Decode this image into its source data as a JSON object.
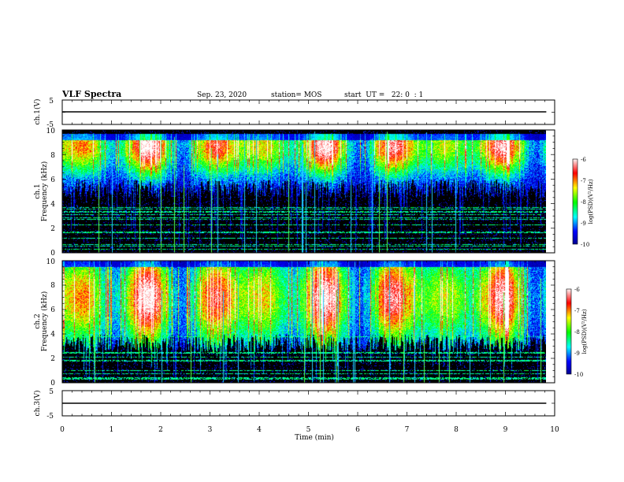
{
  "header": {
    "title": "VLF Spectra",
    "date": "Sep. 23, 2020",
    "station": "station= MOS",
    "start_ut": "start  UT =   22: 0  : 1"
  },
  "chart_data": [
    {
      "type": "line",
      "name": "ch1-voltage",
      "ylabel": "ch.1(V)",
      "ylim": [
        -5,
        5
      ],
      "yticks": [
        "5",
        "-5"
      ],
      "x": [
        0,
        9.83
      ],
      "y": [
        0,
        0
      ]
    },
    {
      "type": "heatmap",
      "name": "ch1-spectrogram",
      "ylabel": "ch.1\nFrequency (kHz)",
      "ylim": [
        0,
        10
      ],
      "yticks": [
        "0",
        "2",
        "4",
        "6",
        "8",
        "10"
      ],
      "xlim": [
        0,
        10
      ],
      "data_x_end": 9.83,
      "emission_band_khz": [
        6,
        9.2
      ],
      "emission_peak_khz": 8.7,
      "colorbar": {
        "label": "log(PSD)(V²/Hz)",
        "range": [
          -10,
          -6
        ],
        "ticks": [
          "-6",
          "-7",
          "-8",
          "-9",
          "-10"
        ]
      }
    },
    {
      "type": "heatmap",
      "name": "ch2-spectrogram",
      "ylabel": "ch.2\nFrequency (kHz)",
      "ylim": [
        0,
        10
      ],
      "yticks": [
        "0",
        "2",
        "4",
        "6",
        "8",
        "10"
      ],
      "xlim": [
        0,
        10
      ],
      "data_x_end": 9.83,
      "emission_band_khz": [
        4,
        9.5
      ],
      "emission_peak_khz": 7,
      "colorbar": {
        "label": "log(PSD)(V²/Hz)",
        "range": [
          -10,
          -6
        ],
        "ticks": [
          "-6",
          "-7",
          "-8",
          "-9",
          "-10"
        ]
      }
    },
    {
      "type": "line",
      "name": "ch3-voltage",
      "ylabel": "ch.3(V)",
      "ylim": [
        -5,
        5
      ],
      "yticks": [
        "5",
        "-5"
      ],
      "x": [
        0,
        9.83
      ],
      "y": [
        0,
        0
      ]
    }
  ],
  "x_axis": {
    "label": "Time (min)",
    "ticks": [
      "0",
      "1",
      "2",
      "3",
      "4",
      "5",
      "6",
      "7",
      "8",
      "9",
      "10"
    ]
  },
  "colors": {
    "colormap": [
      "#000080",
      "#0000ff",
      "#00ffff",
      "#00ff00",
      "#ffff00",
      "#ff0000",
      "#ffffff"
    ],
    "background": "#000000",
    "trace": "#000000"
  }
}
